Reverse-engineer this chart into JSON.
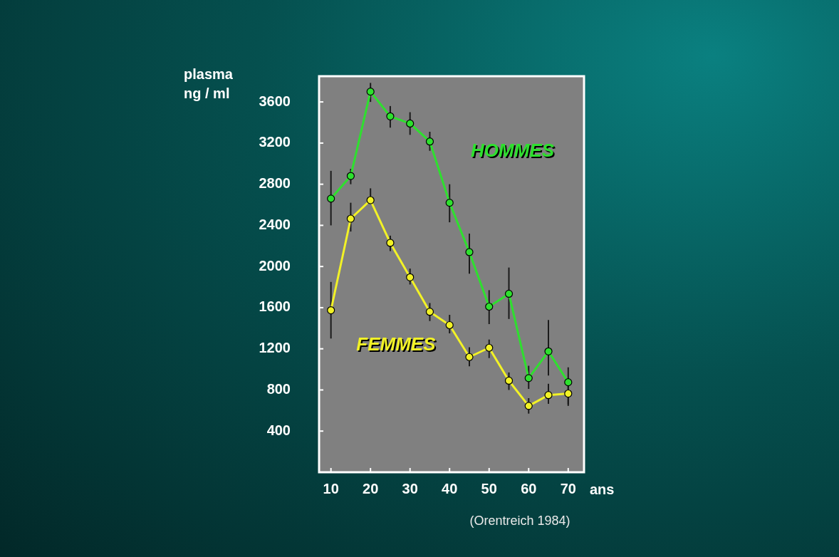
{
  "chart_data": {
    "type": "line",
    "ylabel": "plasma\nng / ml",
    "xlabel": "ans",
    "annotations": [
      "(Orentreich 1984)"
    ],
    "x": [
      10,
      15,
      20,
      25,
      30,
      35,
      40,
      45,
      50,
      55,
      60,
      65,
      70
    ],
    "series": [
      {
        "name": "HOMMES",
        "color": "#2ee02e",
        "values": [
          2660,
          2880,
          3700,
          3460,
          3390,
          3215,
          2620,
          2140,
          1610,
          1735,
          915,
          1175,
          875
        ],
        "errors": [
          [
            2400,
            2930
          ],
          [
            2800,
            2950
          ],
          [
            3600,
            3785
          ],
          [
            3350,
            3560
          ],
          [
            3280,
            3500
          ],
          [
            3125,
            3310
          ],
          [
            2430,
            2800
          ],
          [
            1930,
            2320
          ],
          [
            1440,
            1770
          ],
          [
            1490,
            1990
          ],
          [
            810,
            1035
          ],
          [
            940,
            1480
          ],
          [
            645,
            1020
          ]
        ]
      },
      {
        "name": "FEMMES",
        "color": "#f2f226",
        "values": [
          1575,
          2465,
          2645,
          2230,
          1895,
          1560,
          1430,
          1120,
          1210,
          890,
          645,
          750,
          765
        ],
        "errors": [
          [
            1300,
            1850
          ],
          [
            2340,
            2620
          ],
          [
            2610,
            2760
          ],
          [
            2150,
            2300
          ],
          [
            1825,
            1980
          ],
          [
            1470,
            1645
          ],
          [
            1350,
            1530
          ],
          [
            1030,
            1215
          ],
          [
            1110,
            1290
          ],
          [
            800,
            970
          ],
          [
            570,
            720
          ],
          [
            665,
            860
          ],
          [
            660,
            890
          ]
        ]
      }
    ],
    "xlim": [
      7,
      74
    ],
    "xticks": [
      10,
      20,
      30,
      40,
      50,
      60,
      70
    ],
    "ylim": [
      0,
      3850
    ],
    "yticks": [
      400,
      800,
      1200,
      1600,
      2000,
      2400,
      2800,
      3200,
      3600
    ],
    "grid": false,
    "legend": false,
    "marker": "circle",
    "line_style": "solid"
  }
}
